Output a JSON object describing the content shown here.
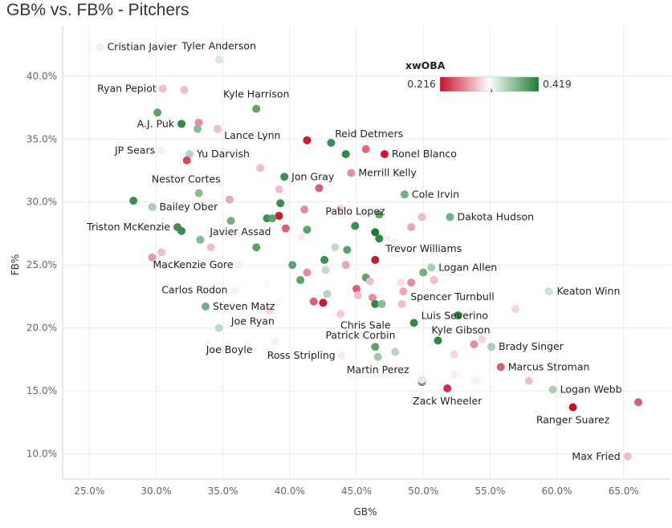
{
  "colors": {
    "low": "#c8102e",
    "mid": "#ffffff",
    "high": "#1e7b34"
  },
  "chart_data": {
    "type": "scatter",
    "title": "GB% vs. FB% - Pitchers",
    "xlabel": "GB%",
    "ylabel": "FB%",
    "xlim": [
      23.0,
      68.5
    ],
    "ylim": [
      8.0,
      44.0
    ],
    "x_ticks": [
      25,
      30,
      35,
      40,
      45,
      50,
      55,
      60,
      65
    ],
    "y_ticks": [
      10,
      15,
      20,
      25,
      30,
      35,
      40
    ],
    "x_tick_labels": [
      "25.0%",
      "30.0%",
      "35.0%",
      "40.0%",
      "45.0%",
      "50.0%",
      "55.0%",
      "60.0%",
      "65.0%"
    ],
    "y_tick_labels": [
      "10.0%",
      "15.0%",
      "20.0%",
      "25.0%",
      "30.0%",
      "35.0%",
      "40.0%"
    ],
    "grid": true,
    "legend": {
      "title": "xwOBA",
      "min_label": "0.216",
      "max_label": "0.419",
      "min": 0.216,
      "max": 0.419,
      "mid_marker": 0.322
    },
    "points": [
      {
        "name": "Cristian Javier",
        "x": 25.8,
        "y": 42.3,
        "c": 0.31
      },
      {
        "name": "Tyler Anderson",
        "x": 34.7,
        "y": 41.3,
        "c": 0.335
      },
      {
        "name": "Ryan Pepiot",
        "x": 30.5,
        "y": 39.0,
        "c": 0.29
      },
      {
        "name": "",
        "x": 32.1,
        "y": 38.9,
        "c": 0.29
      },
      {
        "name": "Kyle Harrison",
        "x": 37.5,
        "y": 37.4,
        "c": 0.39
      },
      {
        "name": "",
        "x": 30.1,
        "y": 37.1,
        "c": 0.39
      },
      {
        "name": "A.J. Puk",
        "x": 31.9,
        "y": 36.2,
        "c": 0.41
      },
      {
        "name": "",
        "x": 33.2,
        "y": 36.3,
        "c": 0.27
      },
      {
        "name": "",
        "x": 33.1,
        "y": 35.8,
        "c": 0.37
      },
      {
        "name": "",
        "x": 34.6,
        "y": 35.8,
        "c": 0.29
      },
      {
        "name": "Lance Lynn",
        "x": 41.3,
        "y": 34.9,
        "c": 0.22
      },
      {
        "name": "",
        "x": 43.1,
        "y": 34.7,
        "c": 0.405
      },
      {
        "name": "Reid Detmers",
        "x": 45.7,
        "y": 34.2,
        "c": 0.255
      },
      {
        "name": "JP Sears",
        "x": 30.4,
        "y": 34.1,
        "c": 0.31
      },
      {
        "name": "Yu Darvish",
        "x": 32.5,
        "y": 33.8,
        "c": 0.35
      },
      {
        "name": "",
        "x": 44.2,
        "y": 33.8,
        "c": 0.41
      },
      {
        "name": "Ronel Blanco",
        "x": 47.1,
        "y": 33.8,
        "c": 0.22
      },
      {
        "name": "",
        "x": 32.3,
        "y": 33.3,
        "c": 0.24
      },
      {
        "name": "",
        "x": 37.8,
        "y": 32.7,
        "c": 0.29
      },
      {
        "name": "Merrill Kelly",
        "x": 44.6,
        "y": 32.3,
        "c": 0.27
      },
      {
        "name": "Jon Gray",
        "x": 39.6,
        "y": 32.0,
        "c": 0.405
      },
      {
        "name": "",
        "x": 42.2,
        "y": 31.1,
        "c": 0.25
      },
      {
        "name": "",
        "x": 39.2,
        "y": 31.0,
        "c": 0.29
      },
      {
        "name": "Nestor Cortes",
        "x": 33.2,
        "y": 30.7,
        "c": 0.37
      },
      {
        "name": "Cole Irvin",
        "x": 48.6,
        "y": 30.6,
        "c": 0.38
      },
      {
        "name": "",
        "x": 35.5,
        "y": 30.2,
        "c": 0.28
      },
      {
        "name": "",
        "x": 28.3,
        "y": 30.1,
        "c": 0.405
      },
      {
        "name": "Bailey Ober",
        "x": 29.7,
        "y": 29.6,
        "c": 0.355
      },
      {
        "name": "",
        "x": 41.1,
        "y": 29.4,
        "c": 0.27
      },
      {
        "name": "",
        "x": 43.8,
        "y": 29.5,
        "c": 0.3
      },
      {
        "name": "",
        "x": 39.3,
        "y": 29.9,
        "c": 0.405
      },
      {
        "name": "",
        "x": 46.7,
        "y": 29.0,
        "c": 0.39
      },
      {
        "name": "",
        "x": 39.2,
        "y": 28.9,
        "c": 0.22
      },
      {
        "name": "",
        "x": 38.3,
        "y": 28.7,
        "c": 0.405
      },
      {
        "name": "",
        "x": 38.7,
        "y": 28.7,
        "c": 0.39
      },
      {
        "name": "",
        "x": 35.6,
        "y": 28.5,
        "c": 0.38
      },
      {
        "name": "",
        "x": 49.9,
        "y": 28.8,
        "c": 0.29
      },
      {
        "name": "Dakota Hudson",
        "x": 52.0,
        "y": 28.8,
        "c": 0.38
      },
      {
        "name": "",
        "x": 44.9,
        "y": 28.1,
        "c": 0.405
      },
      {
        "name": "",
        "x": 49.1,
        "y": 28.0,
        "c": 0.28
      },
      {
        "name": "Triston McKenzie",
        "x": 31.6,
        "y": 28.0,
        "c": 0.405
      },
      {
        "name": "",
        "x": 31.9,
        "y": 27.7,
        "c": 0.405
      },
      {
        "name": "",
        "x": 39.7,
        "y": 27.9,
        "c": 0.25
      },
      {
        "name": "",
        "x": 41.3,
        "y": 27.8,
        "c": 0.39
      },
      {
        "name": "",
        "x": 46.4,
        "y": 27.6,
        "c": 0.419
      },
      {
        "name": "",
        "x": 47.3,
        "y": 27.1,
        "c": 0.31
      },
      {
        "name": "Trevor Williams",
        "x": 46.7,
        "y": 27.1,
        "c": 0.41
      },
      {
        "name": "",
        "x": 47.8,
        "y": 26.8,
        "c": 0.325
      },
      {
        "name": "Javier Assad",
        "x": 33.3,
        "y": 27.0,
        "c": 0.37
      },
      {
        "name": "",
        "x": 40.9,
        "y": 27.2,
        "c": 0.31
      },
      {
        "name": "",
        "x": 43.4,
        "y": 26.4,
        "c": 0.345
      },
      {
        "name": "",
        "x": 44.3,
        "y": 26.2,
        "c": 0.39
      },
      {
        "name": "",
        "x": 37.5,
        "y": 26.4,
        "c": 0.39
      },
      {
        "name": "",
        "x": 34.1,
        "y": 26.4,
        "c": 0.29
      },
      {
        "name": "",
        "x": 30.4,
        "y": 26.0,
        "c": 0.29
      },
      {
        "name": "",
        "x": 29.7,
        "y": 25.6,
        "c": 0.275
      },
      {
        "name": "",
        "x": 42.6,
        "y": 25.4,
        "c": 0.405
      },
      {
        "name": "",
        "x": 46.4,
        "y": 25.4,
        "c": 0.22
      },
      {
        "name": "MacKenzie Gore",
        "x": 36.2,
        "y": 25.0,
        "c": 0.31
      },
      {
        "name": "",
        "x": 40.2,
        "y": 25.0,
        "c": 0.39
      },
      {
        "name": "",
        "x": 44.2,
        "y": 25.0,
        "c": 0.28
      },
      {
        "name": "Logan Allen",
        "x": 50.6,
        "y": 24.8,
        "c": 0.355
      },
      {
        "name": "",
        "x": 42.7,
        "y": 24.6,
        "c": 0.345
      },
      {
        "name": "",
        "x": 41.3,
        "y": 24.4,
        "c": 0.27
      },
      {
        "name": "",
        "x": 50.0,
        "y": 24.4,
        "c": 0.38
      },
      {
        "name": "",
        "x": 45.7,
        "y": 24.0,
        "c": 0.39
      },
      {
        "name": "",
        "x": 40.8,
        "y": 23.8,
        "c": 0.39
      },
      {
        "name": "",
        "x": 46.0,
        "y": 23.7,
        "c": 0.29
      },
      {
        "name": "",
        "x": 48.3,
        "y": 23.6,
        "c": 0.305
      },
      {
        "name": "",
        "x": 49.1,
        "y": 23.6,
        "c": 0.27
      },
      {
        "name": "",
        "x": 50.8,
        "y": 23.8,
        "c": 0.29
      },
      {
        "name": "",
        "x": 38.3,
        "y": 23.5,
        "c": 0.32
      },
      {
        "name": "Carlos Rodon",
        "x": 35.9,
        "y": 23.0,
        "c": 0.31
      },
      {
        "name": "",
        "x": 45.0,
        "y": 23.1,
        "c": 0.25
      },
      {
        "name": "",
        "x": 42.8,
        "y": 22.7,
        "c": 0.35
      },
      {
        "name": "",
        "x": 45.1,
        "y": 22.6,
        "c": 0.29
      },
      {
        "name": "",
        "x": 46.2,
        "y": 22.4,
        "c": 0.27
      },
      {
        "name": "Spencer Turnbull",
        "x": 48.5,
        "y": 22.9,
        "c": 0.28
      },
      {
        "name": "Keaton Winn",
        "x": 59.4,
        "y": 22.9,
        "c": 0.34
      },
      {
        "name": "",
        "x": 39.3,
        "y": 22.2,
        "c": 0.32
      },
      {
        "name": "",
        "x": 41.8,
        "y": 22.1,
        "c": 0.25
      },
      {
        "name": "",
        "x": 46.4,
        "y": 21.9,
        "c": 0.41
      },
      {
        "name": "",
        "x": 46.9,
        "y": 21.9,
        "c": 0.37
      },
      {
        "name": "",
        "x": 48.4,
        "y": 21.9,
        "c": 0.29
      },
      {
        "name": "",
        "x": 42.5,
        "y": 22.0,
        "c": 0.22
      },
      {
        "name": "Steven Matz",
        "x": 33.7,
        "y": 21.7,
        "c": 0.38
      },
      {
        "name": "",
        "x": 56.9,
        "y": 21.5,
        "c": 0.3
      },
      {
        "name": "Joe Ryan",
        "x": 38.5,
        "y": 21.4,
        "c": 0.3
      },
      {
        "name": "Chris Sale",
        "x": 43.8,
        "y": 21.1,
        "c": 0.295
      },
      {
        "name": "",
        "x": 52.6,
        "y": 21.0,
        "c": 0.41
      },
      {
        "name": "Luis Severino",
        "x": 49.3,
        "y": 20.4,
        "c": 0.41
      },
      {
        "name": "",
        "x": 34.7,
        "y": 20.0,
        "c": 0.345
      },
      {
        "name": "Patrick Corbin",
        "x": 45.3,
        "y": 19.4,
        "c": 0.325
      },
      {
        "name": "Kyle Gibson",
        "x": 51.1,
        "y": 19.0,
        "c": 0.41
      },
      {
        "name": "",
        "x": 54.4,
        "y": 19.1,
        "c": 0.3
      },
      {
        "name": "",
        "x": 53.8,
        "y": 18.7,
        "c": 0.27
      },
      {
        "name": "Joe Boyle",
        "x": 38.9,
        "y": 18.9,
        "c": 0.325
      },
      {
        "name": "Brady Singer",
        "x": 55.1,
        "y": 18.5,
        "c": 0.355
      },
      {
        "name": "",
        "x": 46.4,
        "y": 18.5,
        "c": 0.39
      },
      {
        "name": "",
        "x": 47.9,
        "y": 18.1,
        "c": 0.35
      },
      {
        "name": "Ross Stripling",
        "x": 43.9,
        "y": 17.8,
        "c": 0.31
      },
      {
        "name": "",
        "x": 52.3,
        "y": 17.9,
        "c": 0.3
      },
      {
        "name": "Martin Perez",
        "x": 46.6,
        "y": 17.7,
        "c": 0.36
      },
      {
        "name": "Marcus Stroman",
        "x": 55.8,
        "y": 16.9,
        "c": 0.25
      },
      {
        "name": "",
        "x": 52.3,
        "y": 16.3,
        "c": 0.31
      },
      {
        "name": "",
        "x": 49.9,
        "y": 15.7,
        "c": 0.39
      },
      {
        "name": "",
        "x": 49.9,
        "y": 15.9,
        "c": 0.305
      },
      {
        "name": "",
        "x": 53.9,
        "y": 15.8,
        "c": 0.31
      },
      {
        "name": "",
        "x": 57.9,
        "y": 15.8,
        "c": 0.29
      },
      {
        "name": "Zack Wheeler",
        "x": 51.8,
        "y": 15.2,
        "c": 0.23
      },
      {
        "name": "Logan Webb",
        "x": 59.7,
        "y": 15.1,
        "c": 0.355
      },
      {
        "name": "",
        "x": 66.1,
        "y": 14.1,
        "c": 0.25
      },
      {
        "name": "Ranger Suarez",
        "x": 61.2,
        "y": 13.7,
        "c": 0.216
      },
      {
        "name": "Max Fried",
        "x": 65.3,
        "y": 9.8,
        "c": 0.29
      }
    ],
    "label_anchors": {
      "Cristian Javier": [
        "start",
        9,
        4
      ],
      "Tyler Anderson": [
        "middle",
        0,
        -13
      ],
      "Ryan Pepiot": [
        "end",
        -8,
        4
      ],
      "Kyle Harrison": [
        "middle",
        0,
        -14
      ],
      "A.J. Puk": [
        "end",
        -9,
        4
      ],
      "Lance Lynn": [
        "end",
        -33,
        -2
      ],
      "Reid Detmers": [
        "middle",
        4,
        -15
      ],
      "JP Sears": [
        "end",
        -8,
        4
      ],
      "Yu Darvish": [
        "start",
        9,
        4
      ],
      "Ronel Blanco": [
        "start",
        9,
        4
      ],
      "Nestor Cortes": [
        "end",
        27,
        -13
      ],
      "Merrill Kelly": [
        "start",
        9,
        4
      ],
      "Jon Gray": [
        "start",
        9,
        4
      ],
      "Cole Irvin": [
        "start",
        9,
        4
      ],
      "Pablo Lopez": [
        "start",
        -37,
        -14
      ],
      "Bailey Ober": [
        "start",
        9,
        4
      ],
      "Dakota Hudson": [
        "start",
        9,
        4
      ],
      "Triston McKenzie": [
        "end",
        -9,
        4
      ],
      "Trevor Williams": [
        "start",
        8,
        17
      ],
      "Javier Assad": [
        "start",
        12,
        -6
      ],
      "MacKenzie Gore": [
        "end",
        -7,
        4
      ],
      "Logan Allen": [
        "start",
        9,
        4
      ],
      "Carlos Rodon": [
        "end",
        -9,
        4
      ],
      "Spencer Turnbull": [
        "start",
        9,
        11
      ],
      "Keaton Winn": [
        "start",
        10,
        4
      ],
      "Steven Matz": [
        "start",
        9,
        4
      ],
      "Joe Ryan": [
        "end",
        6,
        18
      ],
      "Chris Sale": [
        "start",
        0,
        18
      ],
      "Luis Severino": [
        "start",
        9,
        -5
      ],
      "Patrick Corbin": [
        "middle",
        0,
        4
      ],
      "Kyle Gibson": [
        "start",
        -8,
        -9
      ],
      "Joe Boyle": [
        "end",
        -28,
        14
      ],
      "Brady Singer": [
        "start",
        9,
        4
      ],
      "Ross Stripling": [
        "end",
        -8,
        4
      ],
      "Martin Perez": [
        "middle",
        0,
        20
      ],
      "Marcus Stroman": [
        "start",
        9,
        4
      ],
      "Zack Wheeler": [
        "middle",
        0,
        20
      ],
      "Logan Webb": [
        "start",
        9,
        4
      ],
      "Ranger Suarez": [
        "middle",
        0,
        20
      ],
      "Max Fried": [
        "end",
        -9,
        4
      ]
    },
    "extra_labels": [
      {
        "name": "Pablo Lopez",
        "x": 44.9,
        "y": 28.1
      }
    ]
  }
}
